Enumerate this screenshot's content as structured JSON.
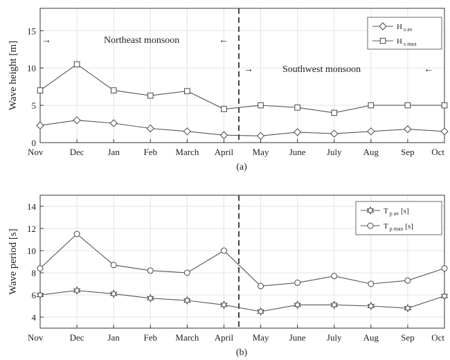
{
  "chart_data": [
    {
      "id": "a",
      "type": "line",
      "caption": "(a)",
      "ylabel": "Wave height [m]",
      "xlabel": "",
      "categories": [
        "Nov",
        "Dec",
        "Jan",
        "Feb",
        "March",
        "April",
        "May",
        "June",
        "July",
        "Aug",
        "Sep",
        "Oct"
      ],
      "ylim": [
        0,
        18
      ],
      "yticks": [
        0,
        5,
        10,
        15
      ],
      "grid": true,
      "legend_position": "top-right",
      "series": [
        {
          "name": "H",
          "sub": "s av",
          "marker": "diamond",
          "values": [
            2.3,
            3.0,
            2.6,
            1.9,
            1.5,
            1.0,
            0.9,
            1.4,
            1.2,
            1.5,
            1.8,
            1.5
          ]
        },
        {
          "name": "H",
          "sub": "s max",
          "marker": "square",
          "values": [
            7.0,
            10.5,
            7.0,
            6.3,
            6.9,
            4.5,
            5.0,
            4.7,
            4.0,
            5.0,
            5.0,
            5.0
          ]
        }
      ],
      "annotations": {
        "northeast": "Northeast monsoon",
        "southwest": "Southwest monsoon",
        "arrow_right": "→",
        "arrow_left": "←"
      }
    },
    {
      "id": "b",
      "type": "line",
      "caption": "(b)",
      "ylabel": "Wave period [s]",
      "xlabel": "",
      "categories": [
        "Nov",
        "Dec",
        "Jan",
        "Feb",
        "March",
        "April",
        "May",
        "June",
        "July",
        "Aug",
        "Sep",
        "Oct"
      ],
      "ylim": [
        3,
        15
      ],
      "yticks": [
        4,
        6,
        8,
        10,
        12,
        14
      ],
      "grid": true,
      "legend_position": "top-right",
      "series": [
        {
          "name": "T",
          "sub": "p av",
          "suffix": " [s]",
          "marker": "hexagram",
          "values": [
            6.0,
            6.4,
            6.1,
            5.7,
            5.5,
            5.1,
            4.5,
            5.1,
            5.1,
            5.0,
            4.8,
            5.9
          ]
        },
        {
          "name": "T",
          "sub": "p max",
          "suffix": " [s]",
          "marker": "circle",
          "values": [
            8.4,
            11.5,
            8.7,
            8.2,
            8.0,
            10.0,
            6.8,
            7.1,
            7.7,
            7.0,
            7.3,
            8.4
          ]
        }
      ]
    }
  ]
}
